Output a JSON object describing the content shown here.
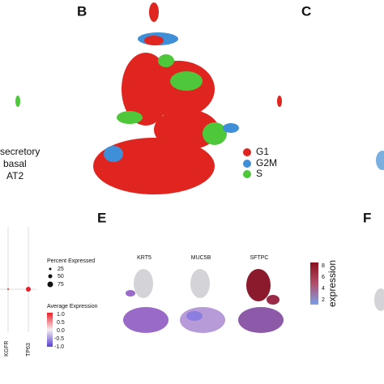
{
  "panel_b": {
    "label": "B",
    "cell_types": [
      "secretory",
      "basal",
      "AT2"
    ],
    "phases": [
      "G1",
      "G2M",
      "S"
    ]
  },
  "panel_c": {
    "label": "C"
  },
  "dot_plot": {
    "size_legend_title": "Percent Expressed",
    "size_legend": [
      "25",
      "50",
      "75"
    ],
    "color_legend_title": "Average Expression",
    "color_legend": [
      "1.0",
      "0.5",
      "0.0",
      "-0.5",
      "-1.0"
    ],
    "genes": [
      "KGFR",
      "TP63"
    ]
  },
  "panel_e": {
    "label": "E",
    "genes": [
      "KRT5",
      "MUC5B",
      "SFTPC"
    ],
    "colorbar_ticks": [
      "8",
      "6",
      "4",
      "2"
    ],
    "colorbar_title": "expression"
  },
  "panel_f": {
    "label": "F"
  }
}
